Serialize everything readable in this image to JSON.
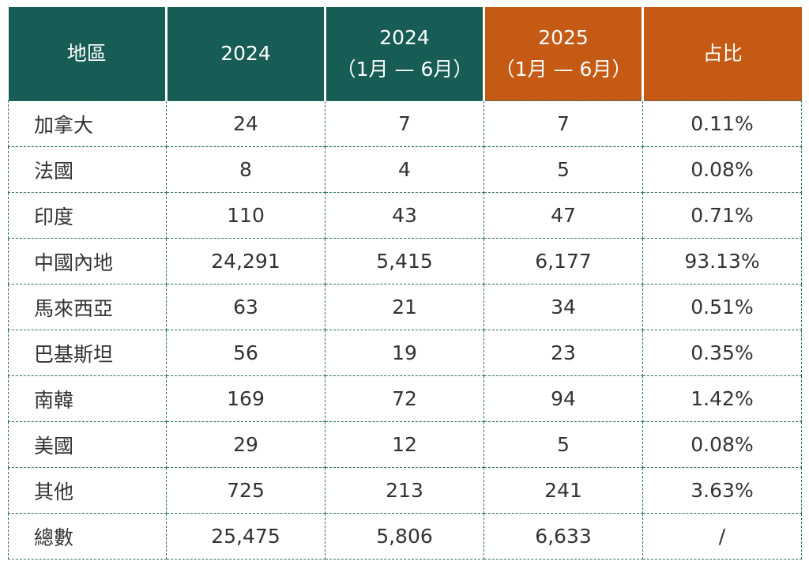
{
  "chart_data": {
    "type": "table",
    "columns": [
      {
        "label": "地區",
        "sub": ""
      },
      {
        "label": "2024",
        "sub": ""
      },
      {
        "label": "2024",
        "sub": "（1月 — 6月）"
      },
      {
        "label": "2025",
        "sub": "（1月 — 6月）"
      },
      {
        "label": "占比",
        "sub": ""
      }
    ],
    "rows": [
      [
        "加拿大",
        "24",
        "7",
        "7",
        "0.11%"
      ],
      [
        "法國",
        "8",
        "4",
        "5",
        "0.08%"
      ],
      [
        "印度",
        "110",
        "43",
        "47",
        "0.71%"
      ],
      [
        "中國內地",
        "24,291",
        "5,415",
        "6,177",
        "93.13%"
      ],
      [
        "馬來西亞",
        "63",
        "21",
        "34",
        "0.51%"
      ],
      [
        "巴基斯坦",
        "56",
        "19",
        "23",
        "0.35%"
      ],
      [
        "南韓",
        "169",
        "72",
        "94",
        "1.42%"
      ],
      [
        "美國",
        "29",
        "12",
        "5",
        "0.08%"
      ],
      [
        "其他",
        "725",
        "213",
        "241",
        "3.63%"
      ],
      [
        "總數",
        "25,475",
        "5,806",
        "6,633",
        "/"
      ]
    ]
  },
  "colors": {
    "header_green": "#175c55",
    "header_orange": "#c55a14",
    "grid_line": "#2f6f67",
    "text": "#333333"
  }
}
